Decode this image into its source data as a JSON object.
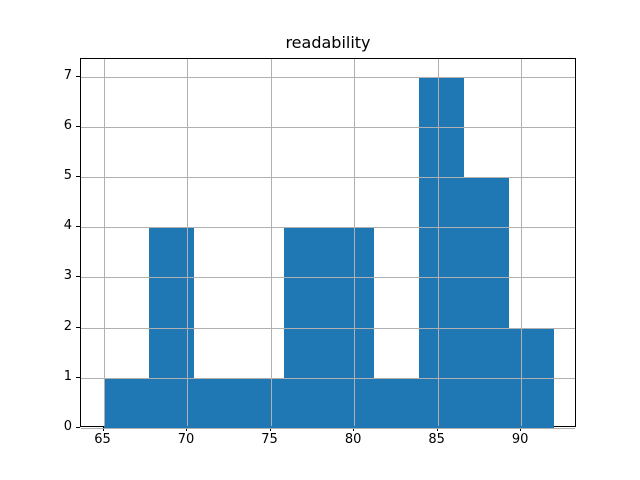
{
  "chart_data": {
    "type": "bar",
    "subtype": "histogram",
    "title": "readability",
    "bin_edges": [
      65,
      67.7,
      70.4,
      73.1,
      75.8,
      78.5,
      81.2,
      83.9,
      86.6,
      89.3,
      92
    ],
    "counts": [
      1,
      4,
      1,
      1,
      4,
      4,
      1,
      7,
      5,
      2
    ],
    "xticks": [
      65,
      70,
      75,
      80,
      85,
      90
    ],
    "yticks": [
      0,
      1,
      2,
      3,
      4,
      5,
      6,
      7
    ],
    "xlim": [
      63.65,
      93.35
    ],
    "ylim": [
      0,
      7.35
    ],
    "grid": true,
    "grid_above_bars": true,
    "legend_position": "none",
    "xlabel": "",
    "ylabel": "",
    "colors": {
      "bar": "#1f77b4",
      "grid": "#b0b0b0",
      "spine": "#000000",
      "text": "#000000",
      "background": "#ffffff"
    }
  }
}
